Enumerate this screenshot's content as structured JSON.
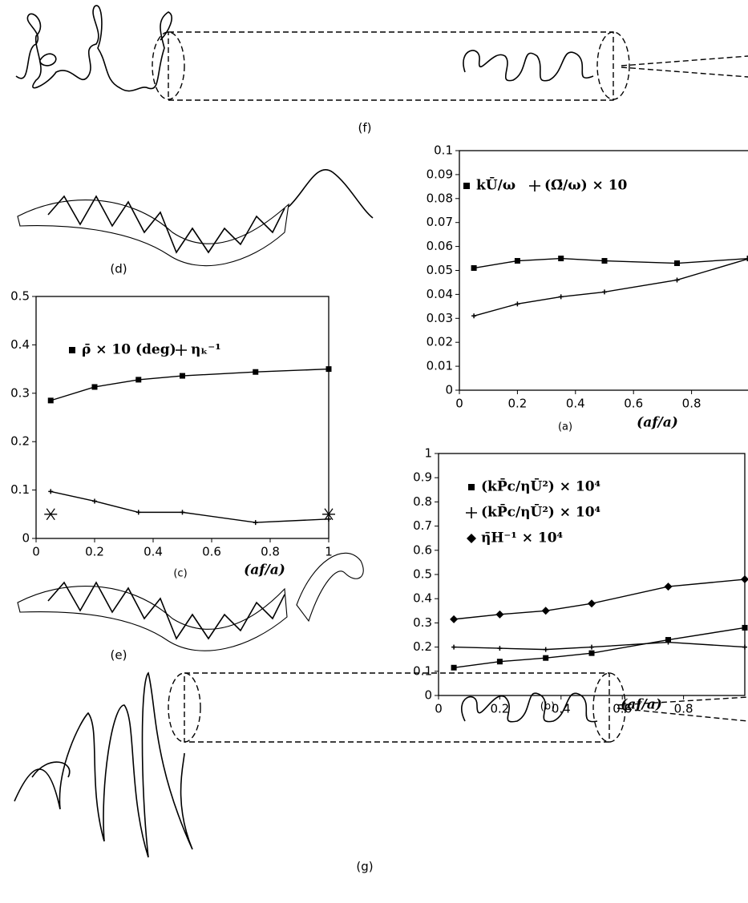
{
  "figure_labels": {
    "f": "(f)",
    "d": "(d)",
    "e": "(e)",
    "g": "(g)"
  },
  "chart_data": [
    {
      "type": "line",
      "subtitle": "(a)",
      "x_label": "(af/a)",
      "x": [
        0.05,
        0.2,
        0.35,
        0.5,
        0.75,
        1
      ],
      "series": [
        {
          "name": "kŪ/ω",
          "color": "#000000",
          "marker": "square",
          "values": [
            0.051,
            0.054,
            0.055,
            0.054,
            0.053,
            0.055
          ]
        },
        {
          "name": "(Ω̄/ω) × 10",
          "color": "#000000",
          "marker": "plus",
          "values": [
            0.031,
            0.036,
            0.039,
            0.041,
            0.046,
            0.055
          ]
        }
      ],
      "xlim": [
        0,
        1
      ],
      "xticks": [
        0,
        0.2,
        0.4,
        0.6,
        0.8
      ],
      "ylim": [
        0,
        0.1
      ],
      "yticks": [
        0,
        0.01,
        0.02,
        0.03,
        0.04,
        0.05,
        0.06,
        0.07,
        0.08,
        0.09,
        0.1
      ]
    },
    {
      "type": "line",
      "subtitle": "(c)",
      "x_label": "(af/a)",
      "x": [
        0.05,
        0.2,
        0.35,
        0.5,
        0.75,
        1
      ],
      "series": [
        {
          "name": "ρ̄ × 10 (deg)",
          "color": "#000000",
          "marker": "square",
          "values": [
            0.285,
            0.313,
            0.328,
            0.336,
            0.344,
            0.35
          ]
        },
        {
          "name": "ηₖ⁻¹",
          "color": "#000000",
          "marker": "plus",
          "values": [
            0.097,
            0.077,
            0.054,
            0.054,
            0.033,
            0.04
          ]
        },
        {
          "color": "#000000",
          "marker": "asterisk",
          "x": [
            0.05,
            1
          ],
          "values": [
            0.05,
            0.05
          ]
        }
      ],
      "xlim": [
        0,
        1
      ],
      "xticks": [
        0,
        0.2,
        0.4,
        0.6,
        0.8,
        1
      ],
      "ylim": [
        0,
        0.5
      ],
      "yticks": [
        0,
        0.1,
        0.2,
        0.3,
        0.4,
        0.5
      ]
    },
    {
      "type": "line",
      "subtitle": "(b)",
      "x_label": "(af/a)",
      "x": [
        0.05,
        0.2,
        0.35,
        0.5,
        0.75,
        1
      ],
      "series": [
        {
          "name": "(kP̄c/ηŪ²) × 10⁴",
          "color": "#000000",
          "marker": "square",
          "values": [
            0.115,
            0.14,
            0.155,
            0.175,
            0.23,
            0.28
          ]
        },
        {
          "name": "(kP̄c/ηŪ²) × 10⁴",
          "color": "#000000",
          "marker": "plus",
          "values": [
            0.2,
            0.195,
            0.19,
            0.2,
            0.22,
            0.2
          ]
        },
        {
          "name": "η̄H⁻¹ × 10⁴",
          "color": "#000000",
          "marker": "diamond",
          "values": [
            0.315,
            0.335,
            0.35,
            0.38,
            0.45,
            0.48
          ]
        }
      ],
      "xlim": [
        0,
        1
      ],
      "xticks": [
        0,
        0.2,
        0.4,
        0.6,
        0.8
      ],
      "ylim": [
        0,
        1
      ],
      "yticks": [
        0,
        0.1,
        0.2,
        0.3,
        0.4,
        0.5,
        0.6,
        0.7,
        0.8,
        0.9,
        1
      ]
    }
  ]
}
